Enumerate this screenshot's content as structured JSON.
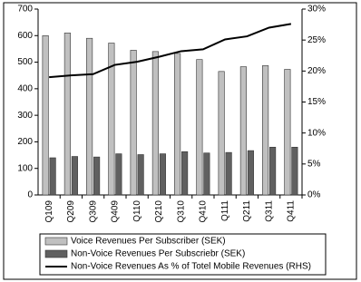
{
  "chart_data": {
    "type": "bar",
    "categories": [
      "Q109",
      "Q209",
      "Q309",
      "Q409",
      "Q110",
      "Q210",
      "Q310",
      "Q410",
      "Q111",
      "Q211",
      "Q311",
      "Q411"
    ],
    "series": [
      {
        "name": "Voice Revenues Per Subscriber (SEK)",
        "color": "#c0c0c0",
        "values": [
          600,
          610,
          590,
          572,
          545,
          540,
          533,
          510,
          465,
          483,
          487,
          473
        ]
      },
      {
        "name": "Non-Voice Revenues Per Subscriebr (SEK)",
        "color": "#606060",
        "values": [
          140,
          145,
          143,
          155,
          152,
          155,
          163,
          158,
          160,
          167,
          180,
          180
        ]
      },
      {
        "name": "Non-Voice Revenues As % of Totel Mobile Revenues (RHS)",
        "color": "#000000",
        "type": "line",
        "axis": "y2",
        "values": [
          19.0,
          19.3,
          19.5,
          21.0,
          21.5,
          22.3,
          23.2,
          23.5,
          25.1,
          25.6,
          27.0,
          27.6
        ]
      }
    ],
    "ylim": [
      0,
      700
    ],
    "yticks": [
      0,
      100,
      200,
      300,
      400,
      500,
      600,
      700
    ],
    "y2lim": [
      0,
      30
    ],
    "y2ticks": [
      {
        "value": 0,
        "label": "0%"
      },
      {
        "value": 5,
        "label": "5%"
      },
      {
        "value": 10,
        "label": "10%"
      },
      {
        "value": 15,
        "label": "15%"
      },
      {
        "value": 20,
        "label": "20%"
      },
      {
        "value": 25,
        "label": "25%"
      },
      {
        "value": 30,
        "label": "30%"
      }
    ],
    "legend": "bottom"
  }
}
